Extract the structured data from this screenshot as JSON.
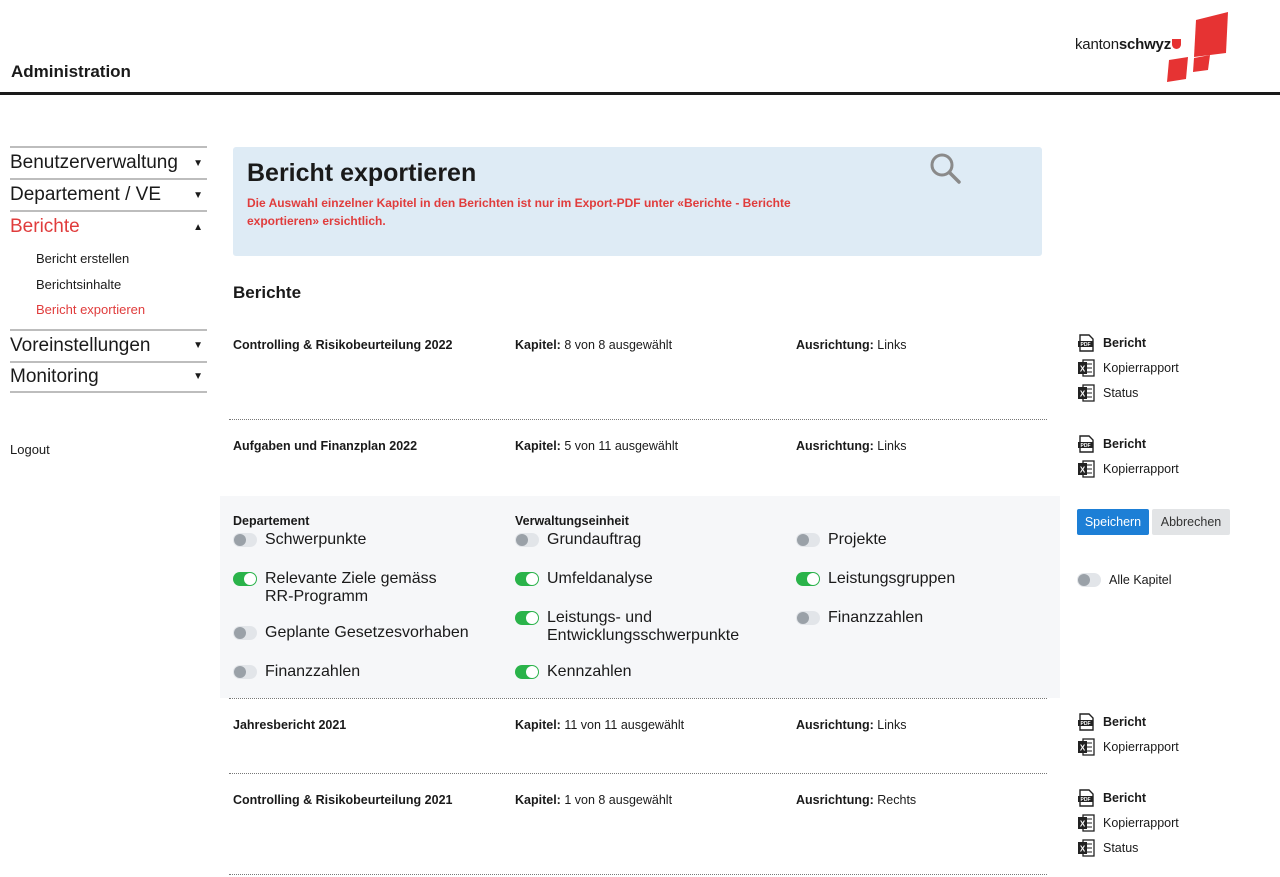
{
  "header": {
    "title": "Administration",
    "logo_text_light": "kanton",
    "logo_text_bold": "schwyz"
  },
  "sidebar": {
    "items": [
      {
        "label": "Benutzerverwaltung"
      },
      {
        "label": "Departement / VE"
      },
      {
        "label": "Berichte"
      },
      {
        "label": "Voreinstellungen"
      },
      {
        "label": "Monitoring"
      }
    ],
    "sub_items": [
      {
        "label": "Bericht erstellen"
      },
      {
        "label": "Berichtsinhalte"
      },
      {
        "label": "Bericht exportieren"
      }
    ],
    "logout": "Logout"
  },
  "banner": {
    "title": "Bericht exportieren",
    "note": "Die Auswahl einzelner Kapitel in den Berichten ist nur im Export-PDF unter «Berichte - Berichte exportieren» ersichtlich."
  },
  "section_title": "Berichte",
  "labels": {
    "kapitel": "Kapitel:",
    "ausrichtung": "Ausrichtung:",
    "bericht": "Bericht",
    "kopierrapport": "Kopierrapport",
    "status": "Status"
  },
  "reports": [
    {
      "name": "Controlling & Risikobeurteilung 2022",
      "kapitel": "8 von 8 ausgewählt",
      "ausrichtung": "Links"
    },
    {
      "name": "Aufgaben und Finanzplan 2022",
      "kapitel": "5 von 11 ausgewählt",
      "ausrichtung": "Links"
    },
    {
      "name": "Jahresbericht 2021",
      "kapitel": "11 von 11 ausgewählt",
      "ausrichtung": "Links"
    },
    {
      "name": "Controlling & Risikobeurteilung 2021",
      "kapitel": "1 von 8 ausgewählt",
      "ausrichtung": "Rechts"
    }
  ],
  "panel": {
    "departement_title": "Departement",
    "verwaltung_title": "Verwaltungseinheit",
    "departement": [
      {
        "label": "Schwerpunkte",
        "on": false
      },
      {
        "label": "Relevante Ziele gemäss RR-Programm",
        "on": true
      },
      {
        "label": "Geplante Gesetzesvorhaben",
        "on": false
      },
      {
        "label": "Finanzzahlen",
        "on": false
      }
    ],
    "verwaltung": [
      {
        "label": "Grundauftrag",
        "on": false
      },
      {
        "label": "Umfeldanalyse",
        "on": true
      },
      {
        "label": "Leistungs- und Entwicklungsschwerpunkte",
        "on": true
      },
      {
        "label": "Kennzahlen",
        "on": true
      }
    ],
    "third": [
      {
        "label": "Projekte",
        "on": false
      },
      {
        "label": "Leistungsgruppen",
        "on": true
      },
      {
        "label": "Finanzzahlen",
        "on": false
      }
    ],
    "save": "Speichern",
    "cancel": "Abbrechen",
    "alle_kapitel": "Alle Kapitel",
    "alle_on": false
  },
  "colors": {
    "accent_red": "#e03c3c",
    "primary_blue": "#1d7fd6",
    "toggle_green": "#2ab34a",
    "banner_bg": "#deebf5"
  }
}
